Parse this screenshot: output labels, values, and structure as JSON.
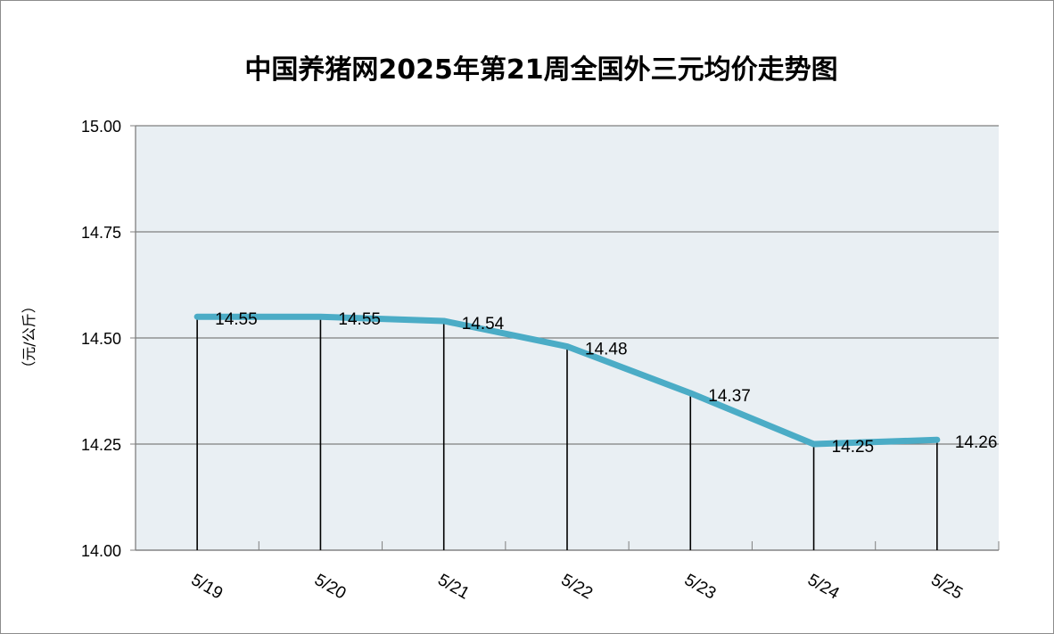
{
  "chart_data": {
    "type": "line",
    "title": "中国养猪网2025年第21周全国外三元均价走势图",
    "ylabel": "（元/公斤）",
    "xlabel": "",
    "categories": [
      "5/19",
      "5/20",
      "5/21",
      "5/22",
      "5/23",
      "5/24",
      "5/25"
    ],
    "series": [
      {
        "values": [
          14.55,
          14.55,
          14.54,
          14.48,
          14.37,
          14.25,
          14.26
        ]
      }
    ],
    "data_labels": [
      "14.55",
      "14.55",
      "14.54",
      "14.48",
      "14.37",
      "14.25",
      "14.26"
    ],
    "ylim": [
      14.0,
      15.0
    ],
    "yticks": [
      "14.00",
      "14.25",
      "14.50",
      "14.75",
      "15.00"
    ],
    "ytick_values": [
      14.0,
      14.25,
      14.5,
      14.75,
      15.0
    ],
    "grid": true,
    "drop_lines": true,
    "legend": "none",
    "colors": {
      "line": "#4bacc6",
      "plot_background": "#e9eff3",
      "gridline": "#7f7f7f",
      "drop_line": "#000000"
    }
  }
}
